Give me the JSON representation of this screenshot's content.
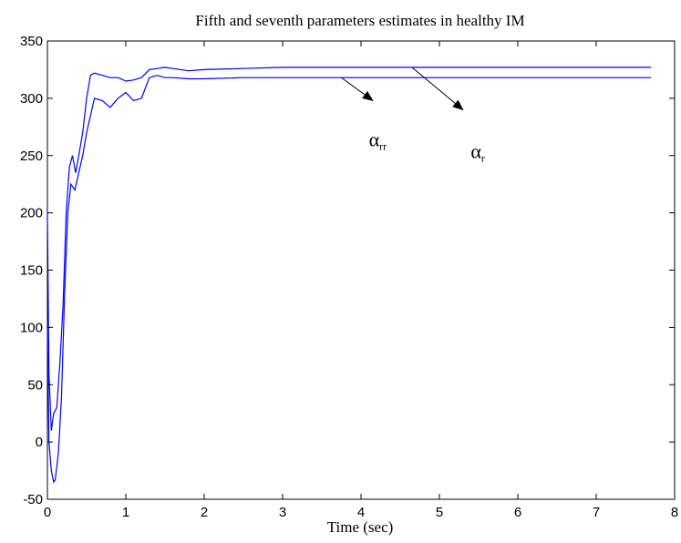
{
  "chart_data": {
    "type": "line",
    "title": "Fifth and seventh parameters estimates in healthy IM",
    "xlabel": "Time (sec)",
    "ylabel": "",
    "xlim": [
      0,
      8
    ],
    "ylim": [
      -50,
      350
    ],
    "xticks": [
      0,
      1,
      2,
      3,
      4,
      5,
      6,
      7,
      8
    ],
    "yticks": [
      -50,
      0,
      50,
      100,
      150,
      200,
      250,
      300,
      350
    ],
    "grid": false,
    "line_color": "#0000ff",
    "series": [
      {
        "x": [
          0,
          0.02,
          0.05,
          0.08,
          0.12,
          0.16,
          0.2,
          0.24,
          0.28,
          0.32,
          0.36,
          0.4,
          0.45,
          0.5,
          0.55,
          0.6,
          0.7,
          0.8,
          0.9,
          1.0,
          1.1,
          1.2,
          1.3,
          1.4,
          1.5,
          1.6,
          1.8,
          2.0,
          2.5,
          3.0,
          3.5,
          4.0,
          4.5,
          5.0,
          6.0,
          7.0,
          7.7
        ],
        "y": [
          200,
          60,
          10,
          25,
          30,
          70,
          120,
          200,
          240,
          250,
          235,
          250,
          270,
          300,
          320,
          322,
          320,
          318,
          318,
          315,
          316,
          318,
          325,
          326,
          327,
          326,
          324,
          325,
          326,
          327,
          327,
          327,
          327,
          327,
          327,
          327,
          327
        ]
      },
      {
        "x": [
          0,
          0.02,
          0.05,
          0.08,
          0.1,
          0.14,
          0.18,
          0.22,
          0.26,
          0.3,
          0.35,
          0.4,
          0.45,
          0.5,
          0.55,
          0.6,
          0.7,
          0.8,
          0.9,
          1.0,
          1.1,
          1.2,
          1.3,
          1.4,
          1.5,
          1.6,
          1.8,
          2.0,
          2.5,
          3.0,
          3.5,
          4.0,
          4.5,
          5.0,
          6.0,
          7.0,
          7.7
        ],
        "y": [
          100,
          0,
          -25,
          -35,
          -33,
          -10,
          40,
          130,
          200,
          225,
          220,
          235,
          250,
          270,
          285,
          300,
          298,
          292,
          300,
          305,
          298,
          300,
          318,
          320,
          318,
          318,
          317,
          317,
          318,
          318,
          318,
          318,
          318,
          318,
          318,
          318,
          318
        ]
      }
    ],
    "annotations": [
      {
        "text": "α",
        "sub": "rr",
        "x": 4.1,
        "y": 258,
        "arrow_from": [
          3.75,
          318
        ],
        "arrow_to": [
          4.15,
          298
        ]
      },
      {
        "text": "α",
        "sub": "r",
        "x": 5.4,
        "y": 248,
        "arrow_from": [
          4.65,
          327
        ],
        "arrow_to": [
          5.3,
          290
        ]
      }
    ]
  }
}
